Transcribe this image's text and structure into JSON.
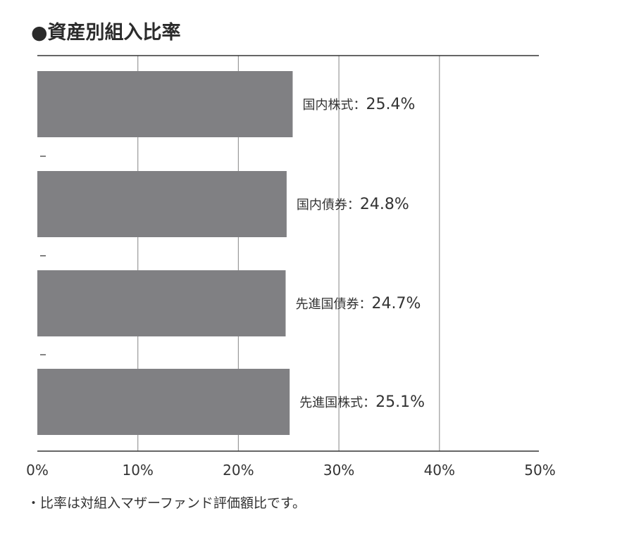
{
  "title": "●資産別組入比率",
  "footnote": "・比率は対組入マザーファンド評価額比です。",
  "colors": {
    "bar": "#808083",
    "grid": "#9a9a9a",
    "axis": "#333333",
    "text": "#333333"
  },
  "chart_data": {
    "type": "bar",
    "orientation": "horizontal",
    "categories": [
      "国内株式",
      "国内債券",
      "先進国債券",
      "先進国株式"
    ],
    "values": [
      25.4,
      24.8,
      24.7,
      25.1
    ],
    "value_labels": [
      "25.4%",
      "24.8%",
      "24.7%",
      "25.1%"
    ],
    "separator": "：",
    "xlim": [
      0,
      50
    ],
    "xticks": [
      0,
      10,
      20,
      30,
      40,
      50
    ],
    "xtick_labels": [
      "0%",
      "10%",
      "20%",
      "30%",
      "40%",
      "50%"
    ],
    "grid": "vertical",
    "legend": "none"
  }
}
